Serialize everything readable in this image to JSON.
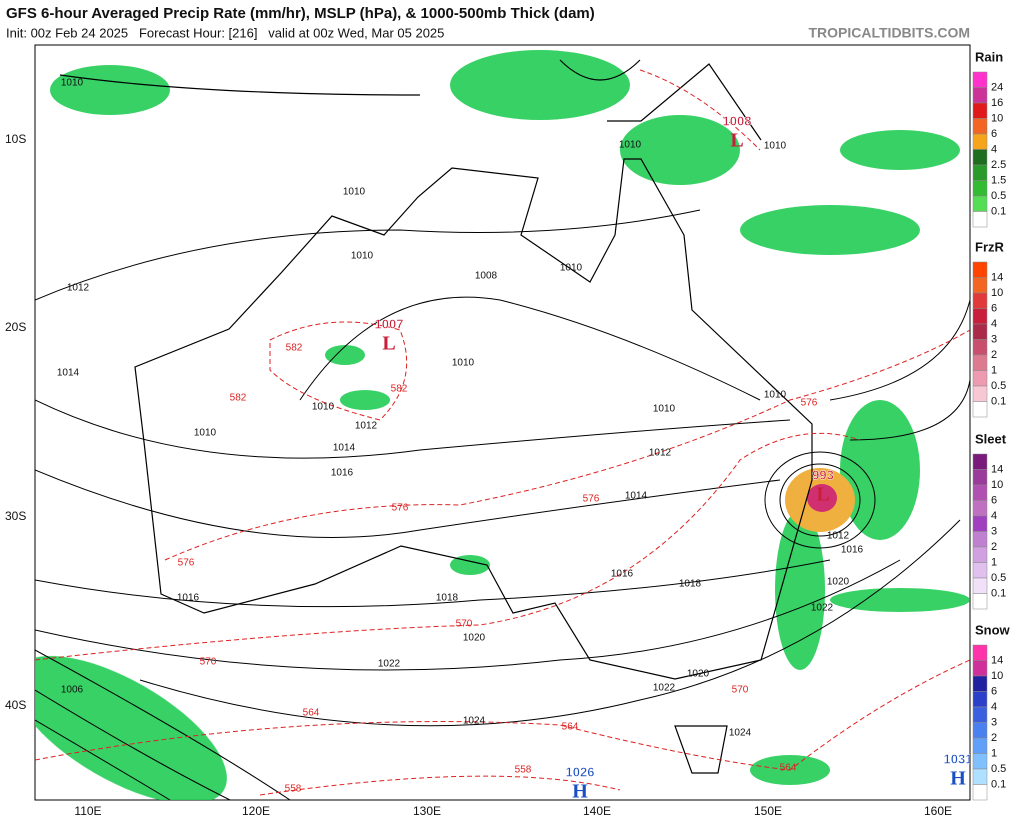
{
  "header": {
    "title": "GFS 6-hour Averaged Precip Rate (mm/hr), MSLP (hPa), & 1000-500mb Thick (dam)",
    "subtitle": "Init: 00z Feb 24 2025   Forecast Hour: [216]   valid at 00z Wed, Mar 05 2025",
    "site": "TROPICALTIDBITS.COM"
  },
  "map": {
    "lat_labels": [
      "10S",
      "20S",
      "30S",
      "40S"
    ],
    "lon_labels": [
      "110E",
      "120E",
      "130E",
      "140E",
      "150E",
      "160E"
    ],
    "isobar_labels": [
      "1010",
      "1010",
      "1010",
      "1010",
      "1010",
      "1010",
      "1008",
      "1012",
      "1014",
      "1010",
      "1010",
      "1010",
      "1012",
      "1014",
      "1016",
      "1010",
      "1010",
      "1012",
      "1014",
      "1016",
      "1018",
      "1018",
      "1016",
      "1020",
      "1022",
      "1022",
      "1020",
      "1024",
      "1024",
      "1006",
      "1020",
      "1022",
      "1016",
      "1012"
    ],
    "thickness_labels": [
      "582",
      "582",
      "582",
      "576",
      "576",
      "576",
      "576",
      "570",
      "570",
      "570",
      "564",
      "564",
      "564",
      "558",
      "558"
    ],
    "centers": [
      {
        "letter": "L",
        "value": "1008"
      },
      {
        "letter": "L",
        "value": "1007"
      },
      {
        "letter": "L",
        "value": "993"
      },
      {
        "letter": "H",
        "value": "1026"
      },
      {
        "letter": "H",
        "value": "1031"
      }
    ]
  },
  "legend": [
    {
      "title": "Rain",
      "labels": [
        "24",
        "16",
        "10",
        "6",
        "4",
        "2.5",
        "1.5",
        "0.5",
        "0.1"
      ]
    },
    {
      "title": "FrzR",
      "labels": [
        "14",
        "10",
        "6",
        "4",
        "3",
        "2",
        "1",
        "0.5",
        "0.1"
      ]
    },
    {
      "title": "Sleet",
      "labels": [
        "14",
        "10",
        "6",
        "4",
        "3",
        "2",
        "1",
        "0.5",
        "0.1"
      ]
    },
    {
      "title": "Snow",
      "labels": [
        "14",
        "10",
        "6",
        "4",
        "3",
        "2",
        "1",
        "0.5",
        "0.1"
      ]
    }
  ]
}
